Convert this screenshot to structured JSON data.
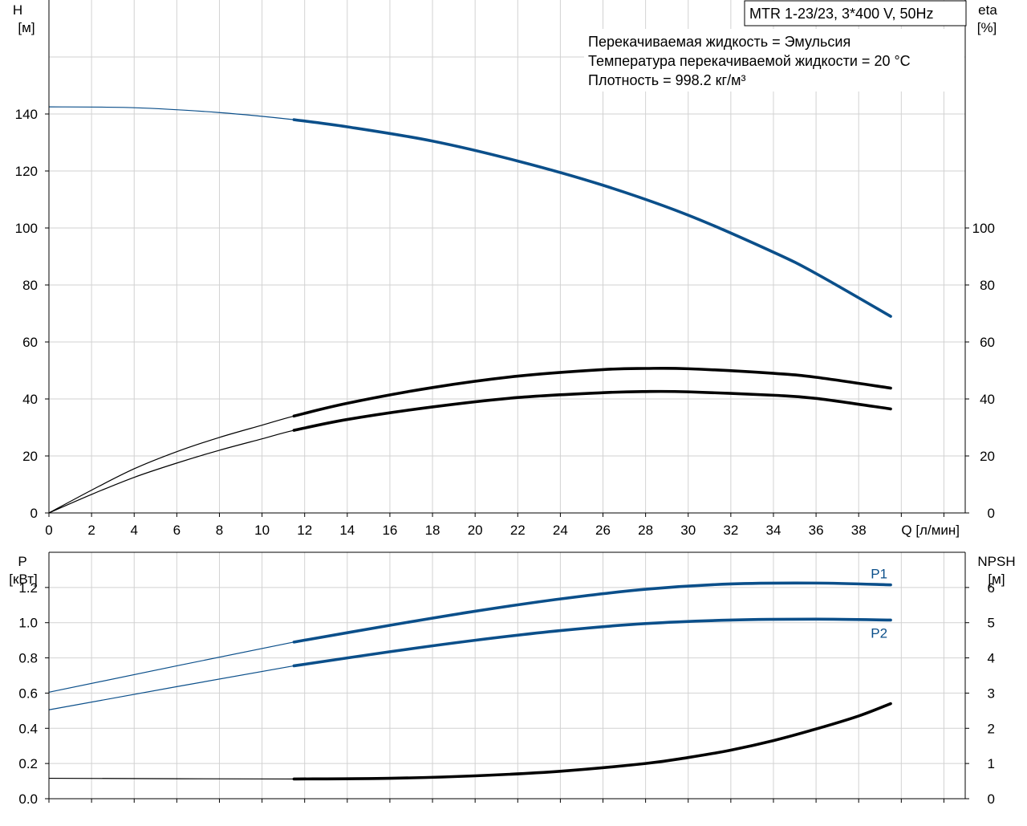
{
  "model_box": "MTR 1-23/23, 3*400 V, 50Hz",
  "fluid_info": [
    "Перекачиваемая жидкость = Эмульсия",
    "Температура перекачиваемой жидкости = 20 °C",
    "Плотность = 998.2 кг/м³"
  ],
  "colors": {
    "blue": "#0b4f8a",
    "black": "#000000",
    "grid": "#d2d2d2"
  },
  "chart_data": [
    {
      "type": "line",
      "xlabel": "Q [л/мин]",
      "ylabel_left": [
        "H",
        "[м]"
      ],
      "ylabel_right": [
        "eta",
        "[%]"
      ],
      "xlim": [
        0,
        43
      ],
      "ylim_left": [
        0,
        180
      ],
      "ylim_right": [
        0,
        180
      ],
      "x_ticks": [
        0,
        2,
        4,
        6,
        8,
        10,
        12,
        14,
        16,
        18,
        20,
        22,
        24,
        26,
        28,
        30,
        32,
        34,
        36,
        38
      ],
      "y_ticks_left": [
        0,
        20,
        40,
        60,
        80,
        100,
        120,
        140
      ],
      "y_ticks_right": [
        0,
        20,
        40,
        60,
        80,
        100
      ],
      "operating_range": [
        11.5,
        39.5
      ],
      "series": [
        {
          "axis": "left",
          "color": "blue",
          "x": [
            0,
            4,
            8,
            11.5,
            14,
            18,
            22,
            26,
            30,
            34,
            36,
            39.5
          ],
          "y": [
            142.5,
            142.2,
            140.5,
            138,
            135.5,
            130.5,
            123.5,
            115,
            104.5,
            91.5,
            84,
            69
          ]
        },
        {
          "axis": "right",
          "color": "black",
          "x": [
            0,
            2,
            4,
            6,
            8,
            10,
            11.5,
            14,
            18,
            22,
            26,
            28,
            30,
            34,
            36,
            39.5
          ],
          "y": [
            0,
            8,
            15.5,
            21.5,
            26.5,
            30.8,
            34,
            38.5,
            44,
            48,
            50.3,
            50.7,
            50.6,
            49,
            47.6,
            43.8
          ]
        },
        {
          "axis": "left",
          "color": "black",
          "x": [
            0,
            2,
            4,
            6,
            8,
            10,
            11.5,
            14,
            18,
            22,
            26,
            28,
            30,
            34,
            36,
            39.5
          ],
          "y": [
            0,
            6.5,
            12.5,
            17.5,
            22,
            26,
            29,
            32.8,
            37.2,
            40.5,
            42.2,
            42.6,
            42.5,
            41.3,
            40.2,
            36.5
          ]
        }
      ]
    },
    {
      "type": "line",
      "ylabel_left": [
        "P",
        "[кВт]"
      ],
      "ylabel_right": [
        "NPSH",
        "[м]"
      ],
      "xlim": [
        0,
        43
      ],
      "ylim_left": [
        0,
        1.4
      ],
      "ylim_right": [
        0,
        7
      ],
      "y_ticks_left": [
        "0.0",
        "0.2",
        "0.4",
        "0.6",
        "0.8",
        "1.0",
        "1.2"
      ],
      "y_ticks_right": [
        0,
        1,
        2,
        3,
        4,
        5,
        6
      ],
      "operating_range": [
        11.5,
        39.5
      ],
      "series": [
        {
          "name": "P1",
          "axis": "left",
          "color": "blue",
          "x": [
            0,
            11.5,
            16,
            20,
            24,
            28,
            32,
            36,
            39.5
          ],
          "y": [
            0.605,
            0.89,
            0.985,
            1.065,
            1.135,
            1.19,
            1.22,
            1.225,
            1.215
          ]
        },
        {
          "name": "P2",
          "axis": "left",
          "color": "blue",
          "x": [
            0,
            11.5,
            16,
            20,
            24,
            28,
            32,
            36,
            39.5
          ],
          "y": [
            0.505,
            0.755,
            0.835,
            0.9,
            0.955,
            0.995,
            1.015,
            1.02,
            1.015
          ]
        },
        {
          "axis": "right",
          "color": "black",
          "x": [
            0,
            11.5,
            16,
            20,
            24,
            28,
            30,
            32,
            34,
            36,
            38,
            39.5
          ],
          "y": [
            0.58,
            0.56,
            0.58,
            0.65,
            0.78,
            1.0,
            1.17,
            1.38,
            1.65,
            1.98,
            2.35,
            2.7
          ]
        }
      ]
    }
  ]
}
